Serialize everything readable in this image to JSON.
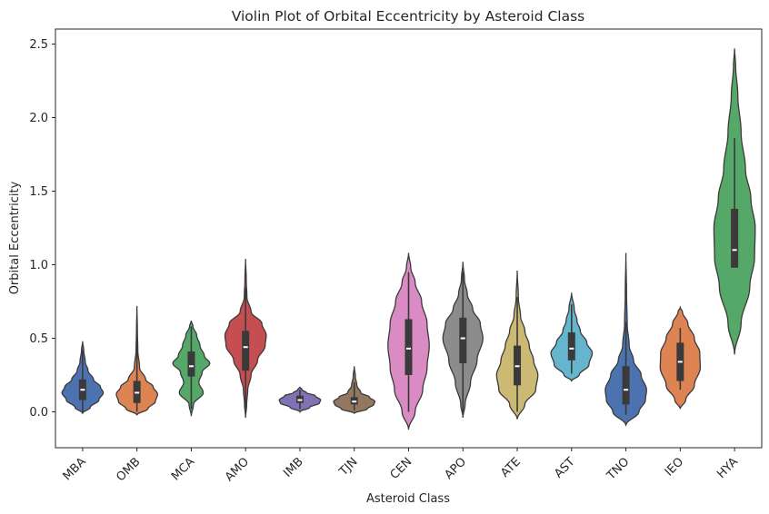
{
  "chart_data": {
    "type": "violin",
    "title": "Violin Plot of Orbital Eccentricity by Asteroid Class",
    "xlabel": "Asteroid Class",
    "ylabel": "Orbital Eccentricity",
    "ylim": [
      -0.25,
      2.6
    ],
    "yticks": [
      "0.0",
      "0.5",
      "1.0",
      "1.5",
      "2.0",
      "2.5"
    ],
    "grid": false,
    "legend": "none",
    "categories": [
      "MBA",
      "OMB",
      "MCA",
      "AMO",
      "IMB",
      "TJN",
      "CEN",
      "APO",
      "ATE",
      "AST",
      "TNO",
      "IEO",
      "HYA"
    ],
    "series": [
      {
        "category": "MBA",
        "color": "#4c72b0",
        "min": -0.01,
        "max": 0.48,
        "whisker_low": 0.0,
        "q1": 0.08,
        "median": 0.15,
        "q3": 0.22,
        "whisker_high": 0.42,
        "profile": [
          [
            -0.01,
            0.0
          ],
          [
            0.03,
            0.35
          ],
          [
            0.08,
            0.75
          ],
          [
            0.13,
            0.95
          ],
          [
            0.17,
            0.82
          ],
          [
            0.22,
            0.5
          ],
          [
            0.28,
            0.25
          ],
          [
            0.34,
            0.12
          ],
          [
            0.42,
            0.05
          ],
          [
            0.48,
            0.0
          ]
        ]
      },
      {
        "category": "OMB",
        "color": "#dd8452",
        "min": -0.02,
        "max": 0.72,
        "whisker_low": 0.0,
        "q1": 0.06,
        "median": 0.13,
        "q3": 0.21,
        "whisker_high": 0.56,
        "profile": [
          [
            -0.02,
            0.0
          ],
          [
            0.02,
            0.5
          ],
          [
            0.07,
            0.85
          ],
          [
            0.12,
            0.95
          ],
          [
            0.17,
            0.75
          ],
          [
            0.22,
            0.4
          ],
          [
            0.3,
            0.12
          ],
          [
            0.42,
            0.04
          ],
          [
            0.56,
            0.02
          ],
          [
            0.72,
            0.0
          ]
        ]
      },
      {
        "category": "MCA",
        "color": "#55a868",
        "min": -0.03,
        "max": 0.62,
        "whisker_low": 0.02,
        "q1": 0.24,
        "median": 0.31,
        "q3": 0.41,
        "whisker_high": 0.58,
        "profile": [
          [
            -0.03,
            0.0
          ],
          [
            0.05,
            0.1
          ],
          [
            0.13,
            0.55
          ],
          [
            0.2,
            0.35
          ],
          [
            0.27,
            0.5
          ],
          [
            0.33,
            0.85
          ],
          [
            0.38,
            0.6
          ],
          [
            0.45,
            0.4
          ],
          [
            0.52,
            0.25
          ],
          [
            0.58,
            0.08
          ],
          [
            0.62,
            0.0
          ]
        ]
      },
      {
        "category": "AMO",
        "color": "#c44e52",
        "min": -0.04,
        "max": 1.04,
        "whisker_low": 0.0,
        "q1": 0.28,
        "median": 0.44,
        "q3": 0.55,
        "whisker_high": 0.84,
        "profile": [
          [
            -0.04,
            0.0
          ],
          [
            0.05,
            0.05
          ],
          [
            0.15,
            0.1
          ],
          [
            0.25,
            0.25
          ],
          [
            0.35,
            0.55
          ],
          [
            0.45,
            0.9
          ],
          [
            0.52,
            0.95
          ],
          [
            0.6,
            0.75
          ],
          [
            0.68,
            0.25
          ],
          [
            0.78,
            0.06
          ],
          [
            0.9,
            0.03
          ],
          [
            1.04,
            0.0
          ]
        ]
      },
      {
        "category": "IMB",
        "color": "#8172b3",
        "min": 0.0,
        "max": 0.17,
        "whisker_low": 0.02,
        "q1": 0.06,
        "median": 0.08,
        "q3": 0.11,
        "whisker_high": 0.15,
        "profile": [
          [
            0.0,
            0.0
          ],
          [
            0.03,
            0.45
          ],
          [
            0.06,
            0.9
          ],
          [
            0.08,
            0.95
          ],
          [
            0.11,
            0.7
          ],
          [
            0.13,
            0.3
          ],
          [
            0.15,
            0.1
          ],
          [
            0.17,
            0.0
          ]
        ]
      },
      {
        "category": "TJN",
        "color": "#937860",
        "min": -0.01,
        "max": 0.31,
        "whisker_low": 0.01,
        "q1": 0.05,
        "median": 0.07,
        "q3": 0.1,
        "whisker_high": 0.2,
        "profile": [
          [
            -0.01,
            0.0
          ],
          [
            0.02,
            0.6
          ],
          [
            0.05,
            0.9
          ],
          [
            0.07,
            0.95
          ],
          [
            0.1,
            0.7
          ],
          [
            0.13,
            0.3
          ],
          [
            0.18,
            0.12
          ],
          [
            0.24,
            0.05
          ],
          [
            0.31,
            0.0
          ]
        ]
      },
      {
        "category": "CEN",
        "color": "#da8bc3",
        "min": -0.12,
        "max": 1.08,
        "whisker_low": 0.0,
        "q1": 0.25,
        "median": 0.43,
        "q3": 0.63,
        "whisker_high": 0.95,
        "profile": [
          [
            -0.12,
            0.0
          ],
          [
            0.0,
            0.3
          ],
          [
            0.15,
            0.65
          ],
          [
            0.3,
            0.85
          ],
          [
            0.45,
            0.95
          ],
          [
            0.6,
            0.85
          ],
          [
            0.75,
            0.6
          ],
          [
            0.88,
            0.3
          ],
          [
            0.98,
            0.1
          ],
          [
            1.08,
            0.0
          ]
        ]
      },
      {
        "category": "APO",
        "color": "#8c8c8c",
        "min": -0.04,
        "max": 1.02,
        "whisker_low": 0.0,
        "q1": 0.33,
        "median": 0.5,
        "q3": 0.64,
        "whisker_high": 0.95,
        "profile": [
          [
            -0.04,
            0.0
          ],
          [
            0.05,
            0.1
          ],
          [
            0.2,
            0.35
          ],
          [
            0.35,
            0.65
          ],
          [
            0.5,
            0.92
          ],
          [
            0.6,
            0.8
          ],
          [
            0.7,
            0.45
          ],
          [
            0.8,
            0.2
          ],
          [
            0.9,
            0.07
          ],
          [
            1.02,
            0.0
          ]
        ]
      },
      {
        "category": "ATE",
        "color": "#ccb974",
        "min": -0.05,
        "max": 0.96,
        "whisker_low": 0.0,
        "q1": 0.18,
        "median": 0.31,
        "q3": 0.45,
        "whisker_high": 0.78,
        "profile": [
          [
            -0.05,
            0.0
          ],
          [
            0.05,
            0.35
          ],
          [
            0.15,
            0.85
          ],
          [
            0.25,
            0.95
          ],
          [
            0.35,
            0.75
          ],
          [
            0.45,
            0.55
          ],
          [
            0.55,
            0.35
          ],
          [
            0.65,
            0.15
          ],
          [
            0.78,
            0.05
          ],
          [
            0.96,
            0.0
          ]
        ]
      },
      {
        "category": "AST",
        "color": "#64b5cd",
        "min": 0.21,
        "max": 0.81,
        "whisker_low": 0.26,
        "q1": 0.35,
        "median": 0.43,
        "q3": 0.54,
        "whisker_high": 0.73,
        "profile": [
          [
            0.21,
            0.0
          ],
          [
            0.25,
            0.35
          ],
          [
            0.32,
            0.8
          ],
          [
            0.4,
            0.95
          ],
          [
            0.47,
            0.7
          ],
          [
            0.55,
            0.4
          ],
          [
            0.62,
            0.25
          ],
          [
            0.7,
            0.12
          ],
          [
            0.81,
            0.0
          ]
        ]
      },
      {
        "category": "TNO",
        "color": "#4c72b0",
        "min": -0.09,
        "max": 1.08,
        "whisker_low": -0.02,
        "q1": 0.05,
        "median": 0.15,
        "q3": 0.31,
        "whisker_high": 0.61,
        "profile": [
          [
            -0.09,
            0.0
          ],
          [
            0.0,
            0.6
          ],
          [
            0.08,
            0.9
          ],
          [
            0.15,
            0.95
          ],
          [
            0.25,
            0.7
          ],
          [
            0.35,
            0.35
          ],
          [
            0.45,
            0.15
          ],
          [
            0.6,
            0.06
          ],
          [
            0.8,
            0.03
          ],
          [
            1.08,
            0.0
          ]
        ]
      },
      {
        "category": "IEO",
        "color": "#dd8452",
        "min": 0.02,
        "max": 0.71,
        "whisker_low": 0.15,
        "q1": 0.21,
        "median": 0.34,
        "q3": 0.47,
        "whisker_high": 0.57,
        "profile": [
          [
            0.02,
            0.0
          ],
          [
            0.08,
            0.25
          ],
          [
            0.18,
            0.65
          ],
          [
            0.3,
            0.92
          ],
          [
            0.4,
            0.9
          ],
          [
            0.5,
            0.65
          ],
          [
            0.6,
            0.35
          ],
          [
            0.68,
            0.1
          ],
          [
            0.71,
            0.0
          ]
        ]
      },
      {
        "category": "HYA",
        "color": "#55a868",
        "min": 0.39,
        "max": 2.47,
        "whisker_low": 0.98,
        "q1": 0.98,
        "median": 1.1,
        "q3": 1.38,
        "whisker_high": 1.86,
        "profile": [
          [
            0.39,
            0.0
          ],
          [
            0.6,
            0.3
          ],
          [
            0.85,
            0.7
          ],
          [
            1.05,
            0.92
          ],
          [
            1.25,
            0.95
          ],
          [
            1.45,
            0.75
          ],
          [
            1.65,
            0.5
          ],
          [
            1.9,
            0.3
          ],
          [
            2.15,
            0.15
          ],
          [
            2.35,
            0.05
          ],
          [
            2.47,
            0.0
          ]
        ]
      }
    ]
  }
}
